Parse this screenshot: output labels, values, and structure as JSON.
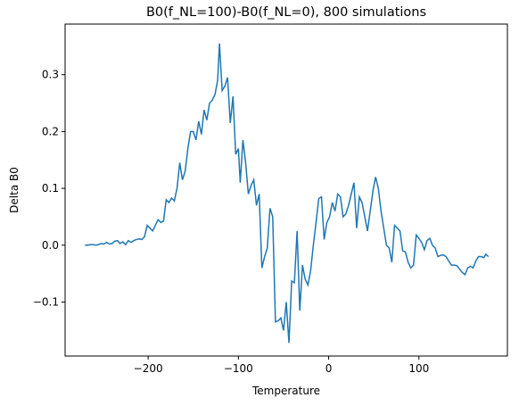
{
  "chart_data": {
    "type": "line",
    "title": "B0(f_NL=100)-B0(f_NL=0), 800 simulations",
    "x_label": "Temperature",
    "y_label": "Delta B0",
    "x": [
      -270,
      -267,
      -264,
      -261,
      -258,
      -255,
      -252,
      -249,
      -246,
      -243,
      -240,
      -237,
      -234,
      -231,
      -228,
      -225,
      -222,
      -219,
      -216,
      -213,
      -210,
      -207,
      -204,
      -201,
      -198,
      -195,
      -192,
      -189,
      -186,
      -183,
      -180,
      -177,
      -174,
      -171,
      -168,
      -165,
      -162,
      -159,
      -156,
      -153,
      -150,
      -147,
      -144,
      -141,
      -138,
      -135,
      -132,
      -129,
      -126,
      -123,
      -121,
      -118,
      -115,
      -112,
      -109,
      -106,
      -103,
      -100,
      -98,
      -95,
      -92,
      -89,
      -86,
      -83,
      -80,
      -77,
      -74,
      -71,
      -68,
      -65,
      -62,
      -59,
      -56,
      -53,
      -50,
      -47,
      -44,
      -41,
      -38,
      -35,
      -32,
      -29,
      -26,
      -23,
      -20,
      -17,
      -14,
      -11,
      -8,
      -5,
      -2,
      1,
      4,
      7,
      10,
      13,
      16,
      19,
      22,
      28,
      31,
      34,
      37,
      40,
      43,
      46,
      49,
      52,
      55,
      58,
      61,
      64,
      67,
      70,
      73,
      76,
      79,
      82,
      85,
      88,
      91,
      94,
      97,
      100,
      103,
      106,
      109,
      112,
      115,
      118,
      121,
      124,
      127,
      130,
      133,
      136,
      139,
      142,
      145,
      148,
      151,
      154,
      157,
      160,
      163,
      166,
      169,
      172,
      174,
      177
    ],
    "series": [
      {
        "name": "Delta B0",
        "color": "#1f77b4",
        "values": [
          0,
          0,
          0.001,
          0.001,
          0,
          0.001,
          0.003,
          0.002,
          0.005,
          0.002,
          0.003,
          0.007,
          0.008,
          0.003,
          0.006,
          0.001,
          0.008,
          0.005,
          0.008,
          0.01,
          0.011,
          0.01,
          0.015,
          0.035,
          0.03,
          0.025,
          0.035,
          0.045,
          0.04,
          0.042,
          0.08,
          0.075,
          0.083,
          0.078,
          0.1,
          0.145,
          0.115,
          0.13,
          0.17,
          0.2,
          0.2,
          0.185,
          0.218,
          0.195,
          0.238,
          0.22,
          0.25,
          0.255,
          0.265,
          0.29,
          0.355,
          0.272,
          0.28,
          0.295,
          0.215,
          0.262,
          0.16,
          0.17,
          0.11,
          0.185,
          0.145,
          0.09,
          0.105,
          0.115,
          0.07,
          0.09,
          -0.04,
          -0.02,
          -0.005,
          0.065,
          0.05,
          -0.135,
          -0.133,
          -0.128,
          -0.15,
          -0.1,
          -0.172,
          -0.063,
          -0.066,
          0.025,
          -0.115,
          -0.035,
          -0.06,
          -0.07,
          -0.045,
          0.0,
          0.04,
          0.082,
          0.085,
          0.01,
          0.04,
          0.05,
          0.075,
          0.06,
          0.09,
          0.085,
          0.05,
          0.055,
          0.07,
          0.11,
          0.03,
          0.085,
          0.075,
          0.05,
          0.025,
          0.06,
          0.095,
          0.12,
          0.1,
          0.06,
          0.03,
          0.0,
          -0.005,
          -0.03,
          0.035,
          0.03,
          0.025,
          -0.01,
          -0.012,
          -0.03,
          -0.04,
          -0.035,
          0.018,
          0.012,
          0.005,
          -0.008,
          0.008,
          0.012,
          0.0,
          -0.005,
          -0.02,
          -0.018,
          -0.017,
          -0.02,
          -0.028,
          -0.035,
          -0.035,
          -0.036,
          -0.042,
          -0.048,
          -0.052,
          -0.04,
          -0.037,
          -0.04,
          -0.028,
          -0.02,
          -0.02,
          -0.022,
          -0.016,
          -0.02
        ]
      }
    ],
    "xlim": [
      -292,
      198
    ],
    "ylim": [
      -0.195,
      0.389
    ],
    "xticks": [
      {
        "value": -200,
        "label": "−200"
      },
      {
        "value": -100,
        "label": "−100"
      },
      0,
      100
    ],
    "yticks": [
      {
        "value": -0.1,
        "label": "−0.1"
      },
      {
        "value": 0,
        "label": "0.0"
      },
      0.1,
      0.2,
      0.3
    ]
  }
}
